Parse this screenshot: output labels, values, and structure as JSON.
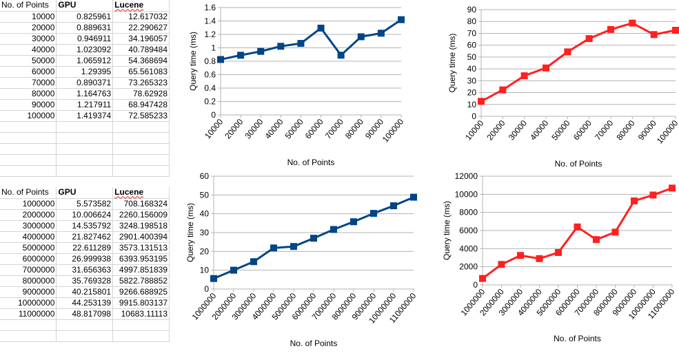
{
  "table1": {
    "headers": [
      "No. of Points",
      "GPU",
      "Lucene"
    ],
    "rows": [
      [
        "10000",
        "0.825961",
        "12.617032"
      ],
      [
        "20000",
        "0.889631",
        "22.290627"
      ],
      [
        "30000",
        "0.946911",
        "34.196057"
      ],
      [
        "40000",
        "1.023092",
        "40.789484"
      ],
      [
        "50000",
        "1.065912",
        "54.368694"
      ],
      [
        "60000",
        "1.29395",
        "65.561083"
      ],
      [
        "70000",
        "0.890371",
        "73.265323"
      ],
      [
        "80000",
        "1.164763",
        "78.62928"
      ],
      [
        "90000",
        "1.217911",
        "68.947428"
      ],
      [
        "100000",
        "1.419374",
        "72.585233"
      ]
    ]
  },
  "table2": {
    "headers": [
      "No. of Points",
      "GPU",
      "Lucene"
    ],
    "rows": [
      [
        "1000000",
        "5.573582",
        "708.168324"
      ],
      [
        "2000000",
        "10.006624",
        "2260.156009"
      ],
      [
        "3000000",
        "14.535792",
        "3248.198518"
      ],
      [
        "4000000",
        "21.827462",
        "2901.400394"
      ],
      [
        "5000000",
        "22.611289",
        "3573.131513"
      ],
      [
        "6000000",
        "26.999938",
        "6393.953195"
      ],
      [
        "7000000",
        "31.656363",
        "4997.851839"
      ],
      [
        "8000000",
        "35.769328",
        "5822.788852"
      ],
      [
        "9000000",
        "40.215801",
        "9266.688925"
      ],
      [
        "10000000",
        "44.253139",
        "9915.803137"
      ],
      [
        "11000000",
        "48.817098",
        "10683.11113"
      ]
    ]
  },
  "chart_data": [
    {
      "type": "line",
      "xlabel": "No. of Points",
      "ylabel": "Query time (ms)",
      "categories": [
        "10000",
        "20000",
        "30000",
        "40000",
        "50000",
        "60000",
        "70000",
        "80000",
        "90000",
        "100000"
      ],
      "values": [
        0.825961,
        0.889631,
        0.946911,
        1.023092,
        1.065912,
        1.29395,
        0.890371,
        1.164763,
        1.217911,
        1.419374
      ],
      "ylim": [
        0,
        1.6
      ],
      "yticks": [
        "0",
        "0.2",
        "0.4",
        "0.6",
        "0.8",
        "1",
        "1.2",
        "1.4",
        "1.6"
      ],
      "ytick_values": [
        0,
        0.2,
        0.4,
        0.6,
        0.8,
        1,
        1.2,
        1.4,
        1.6
      ],
      "color": "#004586",
      "grid": true
    },
    {
      "type": "line",
      "xlabel": "No. of Points",
      "ylabel": "Query time (ms)",
      "categories": [
        "10000",
        "20000",
        "30000",
        "40000",
        "50000",
        "60000",
        "70000",
        "80000",
        "90000",
        "100000"
      ],
      "values": [
        12.617032,
        22.290627,
        34.196057,
        40.789484,
        54.368694,
        65.561083,
        73.265323,
        78.62928,
        68.947428,
        72.585233
      ],
      "ylim": [
        0,
        90
      ],
      "yticks": [
        "0",
        "10",
        "20",
        "30",
        "40",
        "50",
        "60",
        "70",
        "80",
        "90"
      ],
      "ytick_values": [
        0,
        10,
        20,
        30,
        40,
        50,
        60,
        70,
        80,
        90
      ],
      "color": "#ff2020",
      "grid": true
    },
    {
      "type": "line",
      "xlabel": "No. of Points",
      "ylabel": "Query time (ms)",
      "categories": [
        "1000000",
        "2000000",
        "3000000",
        "4000000",
        "5000000",
        "6000000",
        "7000000",
        "8000000",
        "9000000",
        "10000000",
        "11000000"
      ],
      "values": [
        5.573582,
        10.006624,
        14.535792,
        21.827462,
        22.611289,
        26.999938,
        31.656363,
        35.769328,
        40.215801,
        44.253139,
        48.817098
      ],
      "ylim": [
        0,
        60
      ],
      "yticks": [
        "0",
        "10",
        "20",
        "30",
        "40",
        "50",
        "60"
      ],
      "ytick_values": [
        0,
        10,
        20,
        30,
        40,
        50,
        60
      ],
      "color": "#004586",
      "grid": true
    },
    {
      "type": "line",
      "xlabel": "No. of Points",
      "ylabel": "Query time (ms)",
      "categories": [
        "1000000",
        "2000000",
        "3000000",
        "4000000",
        "5000000",
        "6000000",
        "7000000",
        "8000000",
        "9000000",
        "10000000",
        "11000000"
      ],
      "values": [
        708.168324,
        2260.156009,
        3248.198518,
        2901.400394,
        3573.131513,
        6393.953195,
        4997.851839,
        5822.788852,
        9266.688925,
        9915.803137,
        10683.11113
      ],
      "ylim": [
        0,
        12000
      ],
      "yticks": [
        "0",
        "2000",
        "4000",
        "6000",
        "8000",
        "10000",
        "12000"
      ],
      "ytick_values": [
        0,
        2000,
        4000,
        6000,
        8000,
        10000,
        12000
      ],
      "color": "#ff2020",
      "grid": true
    }
  ]
}
